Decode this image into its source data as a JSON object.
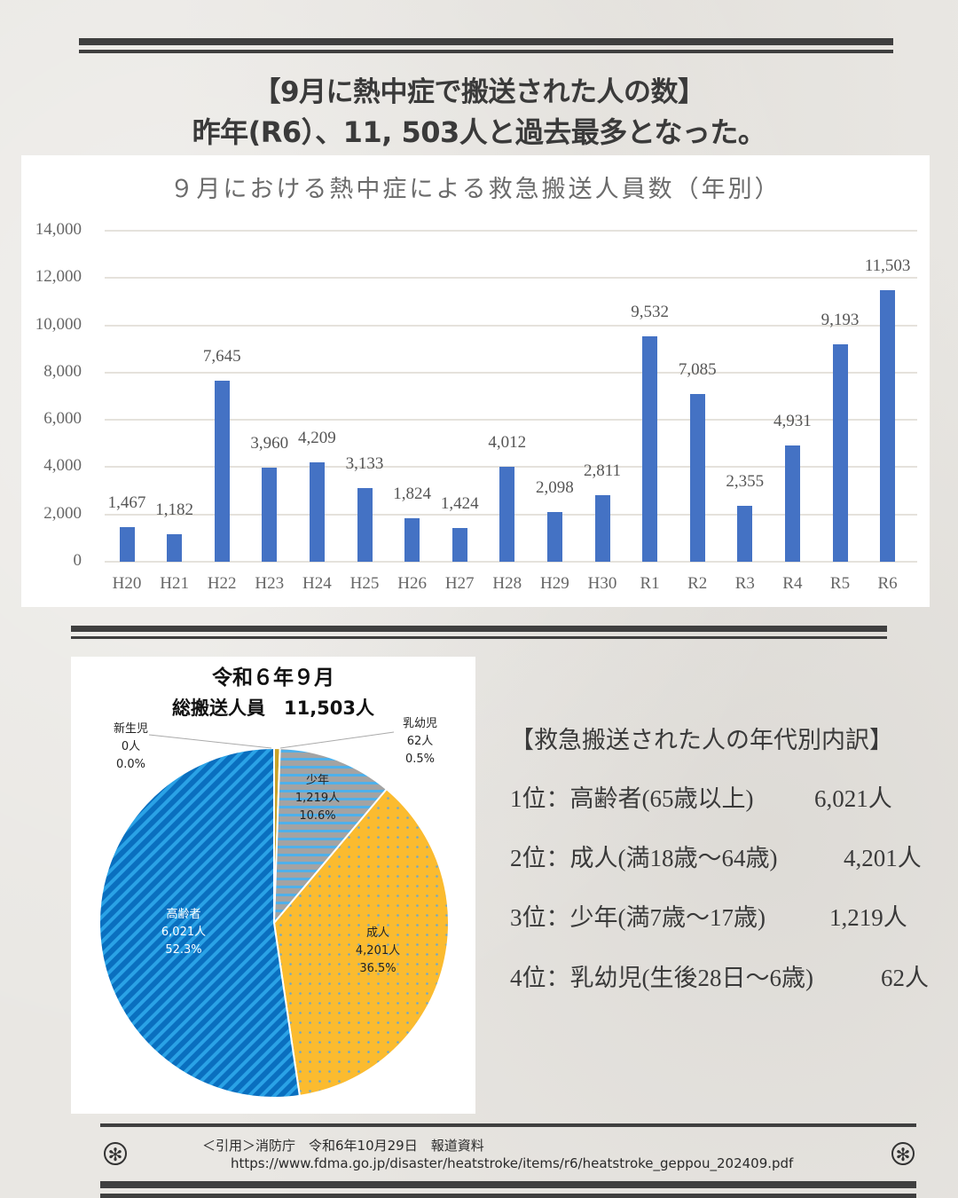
{
  "header": {
    "line1": "【9月に熱中症で搬送された人の数】",
    "line2": "昨年(R6）、11, 503人と過去最多となった。"
  },
  "chart_data": [
    {
      "type": "bar",
      "title": "９月における熱中症による救急搬送人員数（年別）",
      "xlabel": "",
      "ylabel": "",
      "ylim": [
        0,
        14000
      ],
      "yticks": [
        "0",
        "2,000",
        "4,000",
        "6,000",
        "8,000",
        "10,000",
        "12,000",
        "14,000"
      ],
      "grid": true,
      "legend": "none",
      "color": "#4472c4",
      "categories": [
        "H20",
        "H21",
        "H22",
        "H23",
        "H24",
        "H25",
        "H26",
        "H27",
        "H28",
        "H29",
        "H30",
        "R1",
        "R2",
        "R3",
        "R4",
        "R5",
        "R6"
      ],
      "values": [
        1467,
        1182,
        7645,
        3960,
        4209,
        3133,
        1824,
        1424,
        4012,
        2098,
        2811,
        9532,
        7085,
        2355,
        4931,
        9193,
        11503
      ],
      "data_labels": [
        "1,467",
        "1,182",
        "7,645",
        "3,960",
        "4,209",
        "3,133",
        "1,824",
        "1,424",
        "4,012",
        "2,098",
        "2,811",
        "9,532",
        "7,085",
        "2,355",
        "4,931",
        "9,193",
        "11,503"
      ]
    },
    {
      "type": "pie",
      "title": "令和６年９月",
      "subtitle": "総搬送人員　11,503人",
      "total": 11503,
      "slices": [
        {
          "name": "新生児",
          "count_label": "0人",
          "pct_label": "0.0%",
          "value": 0,
          "percent": 0.0,
          "color": "#a9a9a9"
        },
        {
          "name": "乳幼児",
          "count_label": "62人",
          "pct_label": "0.5%",
          "value": 62,
          "percent": 0.5,
          "color": "#c9a227"
        },
        {
          "name": "少年",
          "count_label": "1,219人",
          "pct_label": "10.6%",
          "value": 1219,
          "percent": 10.6,
          "color": "#9e9e9e"
        },
        {
          "name": "成人",
          "count_label": "4,201人",
          "pct_label": "36.5%",
          "value": 4201,
          "percent": 36.5,
          "color": "#fbbb2f"
        },
        {
          "name": "高齢者",
          "count_label": "6,021人",
          "pct_label": "52.3%",
          "value": 6021,
          "percent": 52.3,
          "color": "#0a73c4"
        }
      ]
    }
  ],
  "breakdown": {
    "title": "【救急搬送された人の年代別内訳】",
    "items": [
      {
        "rank": "1位：高齢者(65歳以上)",
        "value": "6,021人"
      },
      {
        "rank": "2位：成人(満18歳〜64歳)",
        "value": "4,201人"
      },
      {
        "rank": "3位：少年(満7歳〜17歳)",
        "value": "1,219人"
      },
      {
        "rank": "4位：乳幼児(生後28日〜6歳)",
        "value": "62人"
      }
    ]
  },
  "footer": {
    "citation": "＜引用＞消防庁　令和6年10月29日　報道資料",
    "url": "https://www.fdma.go.jp/disaster/heatstroke/items/r6/heatstroke_geppou_202409.pdf",
    "asterisk_icon": "✻"
  }
}
